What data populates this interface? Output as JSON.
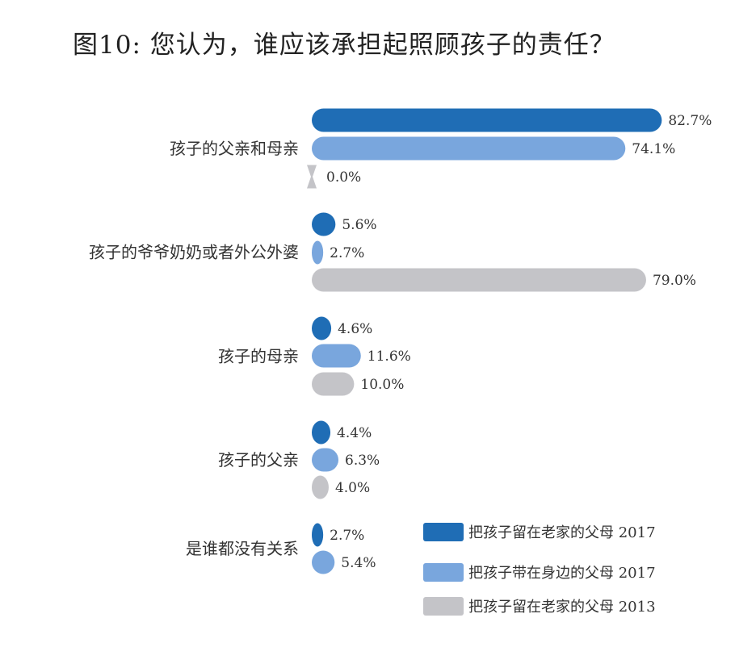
{
  "chart_data": {
    "type": "bar",
    "orientation": "horizontal",
    "title": "图10: 您认为，谁应该承担起照顾孩子的责任？",
    "categories": [
      "孩子的父亲和母亲",
      "孩子的爷爷奶奶或者外公外婆",
      "孩子的母亲",
      "孩子的父亲",
      "是谁都没有关系"
    ],
    "series": [
      {
        "name": "把孩子留在老家的父母 2017",
        "color": "#1f6db5",
        "values": [
          82.7,
          5.6,
          4.6,
          4.4,
          2.7
        ],
        "labels": [
          "82.7%",
          "5.6%",
          "4.6%",
          "4.4%",
          "2.7%"
        ]
      },
      {
        "name": "把孩子带在身边的父母 2017",
        "color": "#79a6dd",
        "values": [
          74.1,
          2.7,
          11.6,
          6.3,
          5.4
        ],
        "labels": [
          "74.1%",
          "2.7%",
          "11.6%",
          "6.3%",
          "5.4%"
        ]
      },
      {
        "name": "把孩子留在老家的父母 2013",
        "color": "#c4c4c8",
        "values": [
          0.0,
          79.0,
          10.0,
          4.0,
          null
        ],
        "labels": [
          "0.0%",
          "79.0%",
          "10.0%",
          "4.0%",
          null
        ]
      }
    ],
    "unit": "%",
    "legend_position": "bottom-right",
    "grid": false
  }
}
